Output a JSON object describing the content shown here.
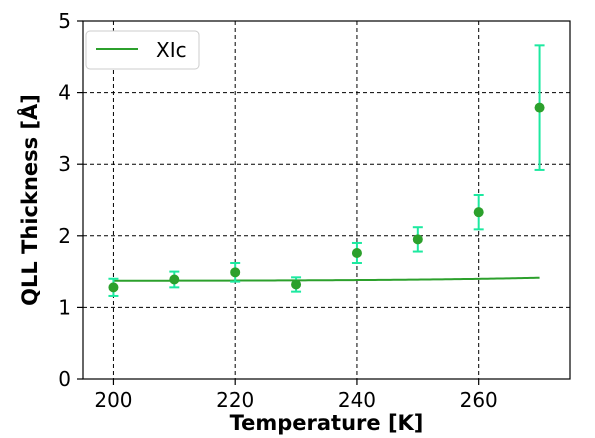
{
  "chart_data": {
    "type": "scatter",
    "xlabel": "Temperature [K]",
    "ylabel": "QLL Thickness [Å]",
    "xlim": [
      195,
      275
    ],
    "ylim": [
      0,
      5
    ],
    "xticks": [
      200,
      220,
      240,
      260
    ],
    "yticks": [
      0,
      1,
      2,
      3,
      4,
      5
    ],
    "grid": true,
    "grid_style": "dashed",
    "legend_position": "top-left",
    "colors": {
      "fit_line": "#2ca02c",
      "points": "#2ca02c",
      "error_bars": "#1de9a0"
    },
    "series": [
      {
        "type": "line",
        "name": "XIc",
        "model": "exponential",
        "fit_params": {
          "a": 1.37,
          "b": 0.002,
          "c": 0.16667
        },
        "x_range": [
          200,
          270
        ]
      },
      {
        "type": "scatter",
        "x": [
          200,
          210,
          220,
          230,
          240,
          250,
          260,
          270
        ],
        "y": [
          1.28,
          1.39,
          1.49,
          1.32,
          1.76,
          1.95,
          2.33,
          3.79
        ],
        "yerr": [
          0.12,
          0.11,
          0.13,
          0.1,
          0.14,
          0.17,
          0.24,
          0.87
        ]
      }
    ]
  }
}
